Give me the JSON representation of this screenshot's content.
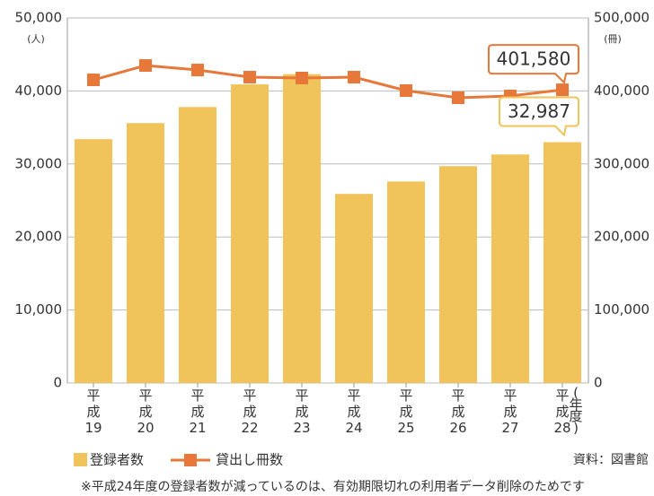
{
  "chart_data": {
    "type": "bar_line",
    "categories": [
      "平成19",
      "平成20",
      "平成21",
      "平成22",
      "平成23",
      "平成24",
      "平成25",
      "平成26",
      "平成27",
      "平成28"
    ],
    "category_unit": "(年度)",
    "series": [
      {
        "name": "登録者数",
        "type": "bar",
        "color": "#f0c45a",
        "axis": "y",
        "values": [
          33400,
          35600,
          37800,
          40900,
          42300,
          25900,
          27600,
          29700,
          31300,
          32987
        ],
        "value_labels": [
          null,
          null,
          null,
          null,
          null,
          null,
          null,
          null,
          null,
          "32,987"
        ]
      },
      {
        "name": "貸出し冊数",
        "type": "line",
        "color": "#e8773a",
        "axis": "y2",
        "values": [
          415200,
          434900,
          428700,
          418900,
          417700,
          418900,
          400500,
          390700,
          393100,
          401580
        ],
        "value_labels": [
          null,
          null,
          null,
          null,
          null,
          null,
          null,
          null,
          null,
          "401,580"
        ]
      }
    ],
    "ylim": [
      0,
      50000
    ],
    "yticks": [
      0,
      {
        "value": 10000,
        "label": "10,000"
      },
      {
        "value": 20000,
        "label": "20,000"
      },
      {
        "value": 30000,
        "label": "30,000"
      },
      {
        "value": 40000,
        "label": "40,000"
      },
      {
        "value": 50000,
        "label": "50,000"
      }
    ],
    "y_unit": "(人)",
    "y2lim": [
      0,
      500000
    ],
    "y2ticks": [
      0,
      {
        "value": 100000,
        "label": "100,000"
      },
      {
        "value": 200000,
        "label": "200,000"
      },
      {
        "value": 300000,
        "label": "300,000"
      },
      {
        "value": 400000,
        "label": "400,000"
      },
      {
        "value": 500000,
        "label": "500,000"
      }
    ],
    "y2_unit": "(冊)",
    "grid": true,
    "source": "資料：図書館",
    "note": "※平成24年度の登録者数が減っているのは、有効期限切れの利用者データ削除のためです"
  }
}
